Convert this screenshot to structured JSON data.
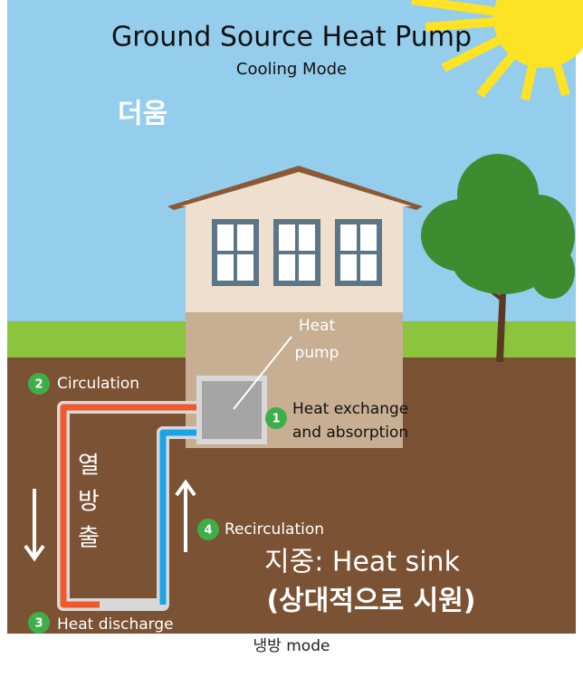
{
  "title": "Ground Source Heat Pump",
  "subtitle": "Cooling Mode",
  "hot_label": "더움",
  "heat_pump_label": [
    "Heat",
    "pump"
  ],
  "steps": [
    {
      "number": "1",
      "lines": [
        "Heat exchange",
        "and absorption"
      ]
    },
    {
      "number": "2",
      "lines": [
        "Circulation"
      ]
    },
    {
      "number": "3",
      "lines": [
        "Heat discharge"
      ]
    },
    {
      "number": "4",
      "lines": [
        "Recirculation"
      ]
    }
  ],
  "discharge_label": [
    "열",
    "방",
    "출"
  ],
  "sink_label": [
    "지중: Heat sink",
    "(상대적으로 시원)"
  ],
  "caption": "냉방 mode"
}
